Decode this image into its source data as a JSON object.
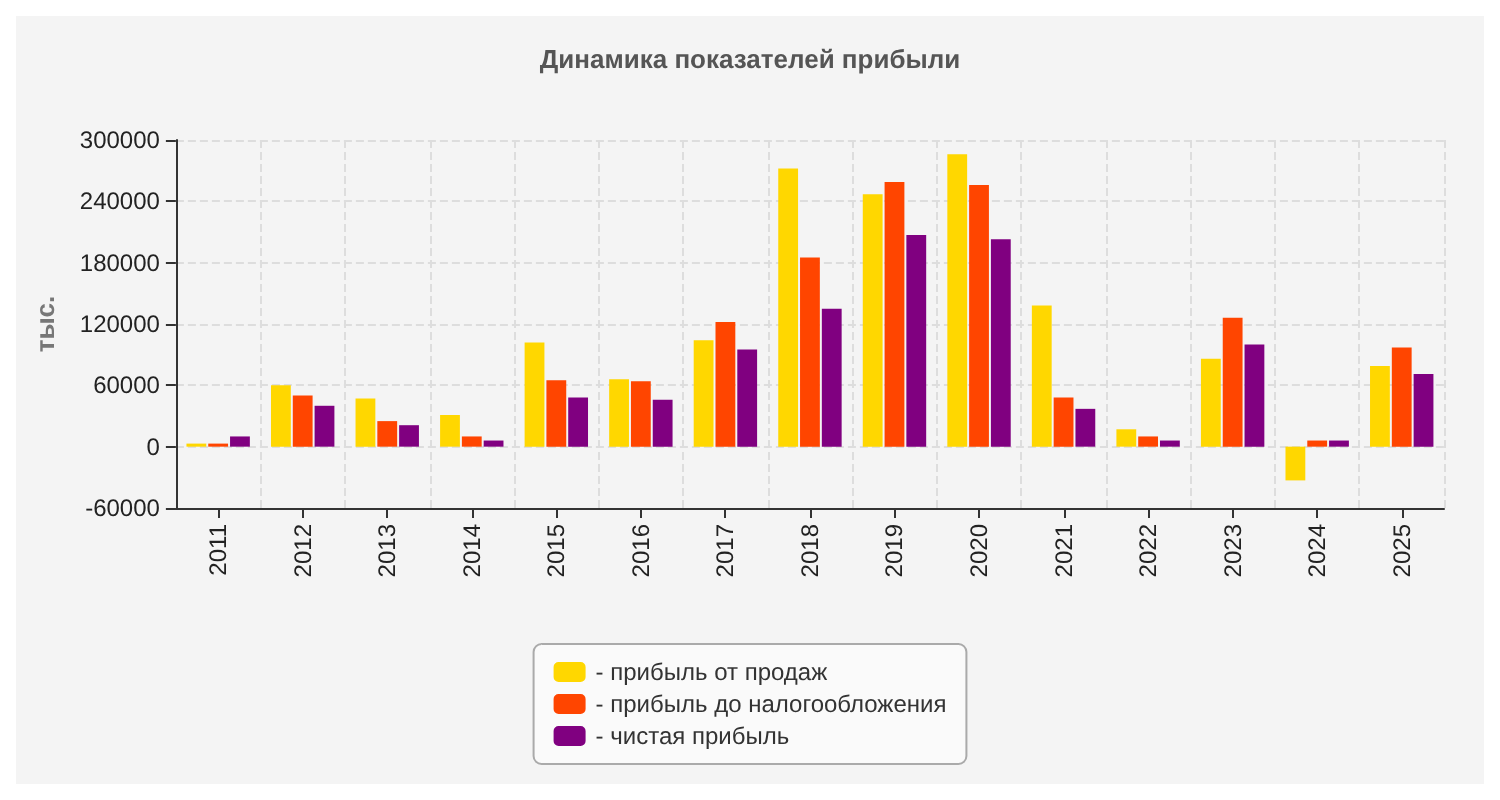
{
  "chart_data": {
    "type": "bar",
    "title": "Динамика показателей прибыли",
    "ylabel": "тыс.",
    "categories": [
      "2011",
      "2012",
      "2013",
      "2014",
      "2015",
      "2016",
      "2017",
      "2018",
      "2019",
      "2020",
      "2021",
      "2022",
      "2023",
      "2024",
      "2025"
    ],
    "series": [
      {
        "name": "- прибыль от продаж",
        "color": "#ffd700",
        "values": [
          3000,
          60000,
          47000,
          31000,
          102000,
          66000,
          104000,
          272000,
          247000,
          286000,
          138000,
          17000,
          86000,
          -33000,
          79000
        ]
      },
      {
        "name": "- прибыль до налогообложения",
        "color": "#ff4500",
        "values": [
          3000,
          50000,
          25000,
          10000,
          65000,
          64000,
          122000,
          185000,
          259000,
          256000,
          48000,
          10000,
          126000,
          6000,
          97000
        ]
      },
      {
        "name": "- чистая прибыль",
        "color": "#800080",
        "values": [
          10000,
          40000,
          21000,
          6000,
          48000,
          46000,
          95000,
          135000,
          207000,
          203000,
          37000,
          6000,
          100000,
          6000,
          71000
        ]
      }
    ],
    "ylim": [
      -60000,
      300000
    ],
    "yticks": [
      -60000,
      0,
      60000,
      120000,
      180000,
      240000,
      300000
    ],
    "grid": true,
    "legend": "bottom"
  }
}
